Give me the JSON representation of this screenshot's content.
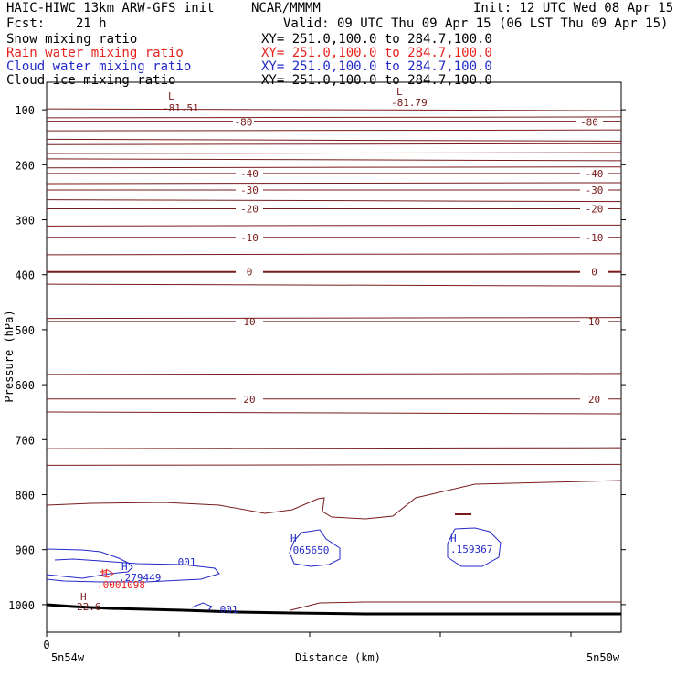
{
  "header": {
    "title": "HAIC-HIWC 13km ARW-GFS init",
    "org": "NCAR/MMMM",
    "init": "Init: 12 UTC Wed 08 Apr 15",
    "fcst": "Fcst:    21 h",
    "valid": "Valid: 09 UTC Thu 09 Apr 15 (06 LST Thu 09 Apr 15)"
  },
  "fields": [
    {
      "name": "Snow mixing ratio",
      "xy": "XY= 251.0,100.0 to 284.7,100.0",
      "color": "#000000"
    },
    {
      "name": "Rain water mixing ratio",
      "xy": "XY= 251.0,100.0 to 284.7,100.0",
      "color": "#e8231f"
    },
    {
      "name": "Cloud water mixing ratio",
      "xy": "XY= 251.0,100.0 to 284.7,100.0",
      "color": "#2329c8"
    },
    {
      "name": "Cloud ice mixing ratio",
      "xy": "XY= 251.0,100.0 to 284.7,100.0",
      "color": "#000000"
    }
  ],
  "chart_data": {
    "type": "line",
    "xlabel": "Distance (km)",
    "ylabel": "Pressure (hPa)",
    "x_tick_labels": {
      "origin": "0",
      "left": "5n54w",
      "right": "5n50w"
    },
    "yticks": [
      100,
      200,
      300,
      400,
      500,
      600,
      700,
      800,
      900,
      1000
    ],
    "ylim": [
      50,
      1050
    ],
    "isotherms": {
      "color": "#7a1a1a",
      "labeled": [
        {
          "value": "-80",
          "p": 122
        },
        {
          "value": "-40",
          "p": 216
        },
        {
          "value": "-30",
          "p": 246
        },
        {
          "value": "-20",
          "p": 280
        },
        {
          "value": "-10",
          "p": 332
        },
        {
          "value": "0",
          "p": 395
        },
        {
          "value": "10",
          "p": 485
        },
        {
          "value": "20",
          "p": 626
        }
      ]
    },
    "annotations": [
      {
        "text": "L",
        "color": "#7a1a1a"
      },
      {
        "text": "-81.51",
        "color": "#7a1a1a"
      },
      {
        "text": "L",
        "color": "#7a1a1a"
      },
      {
        "text": "-81.79",
        "color": "#7a1a1a"
      },
      {
        "text": "H",
        "color": "#2329c8"
      },
      {
        "text": ".065650",
        "color": "#2329c8"
      },
      {
        "text": "H",
        "color": "#2329c8"
      },
      {
        "text": ".159367",
        "color": "#2329c8"
      },
      {
        "text": "H",
        "color": "#2329c8"
      },
      {
        "text": ".279449",
        "color": "#2329c8"
      },
      {
        "text": ".001",
        "color": "#2329c8"
      },
      {
        "text": ".001",
        "color": "#2329c8"
      },
      {
        "text": "H",
        "color": "#e8231f"
      },
      {
        "text": ".0001098",
        "color": "#e8231f"
      },
      {
        "text": "H",
        "color": "#7a1a1a"
      },
      {
        "text": "22.6",
        "color": "#7a1a1a"
      }
    ]
  }
}
